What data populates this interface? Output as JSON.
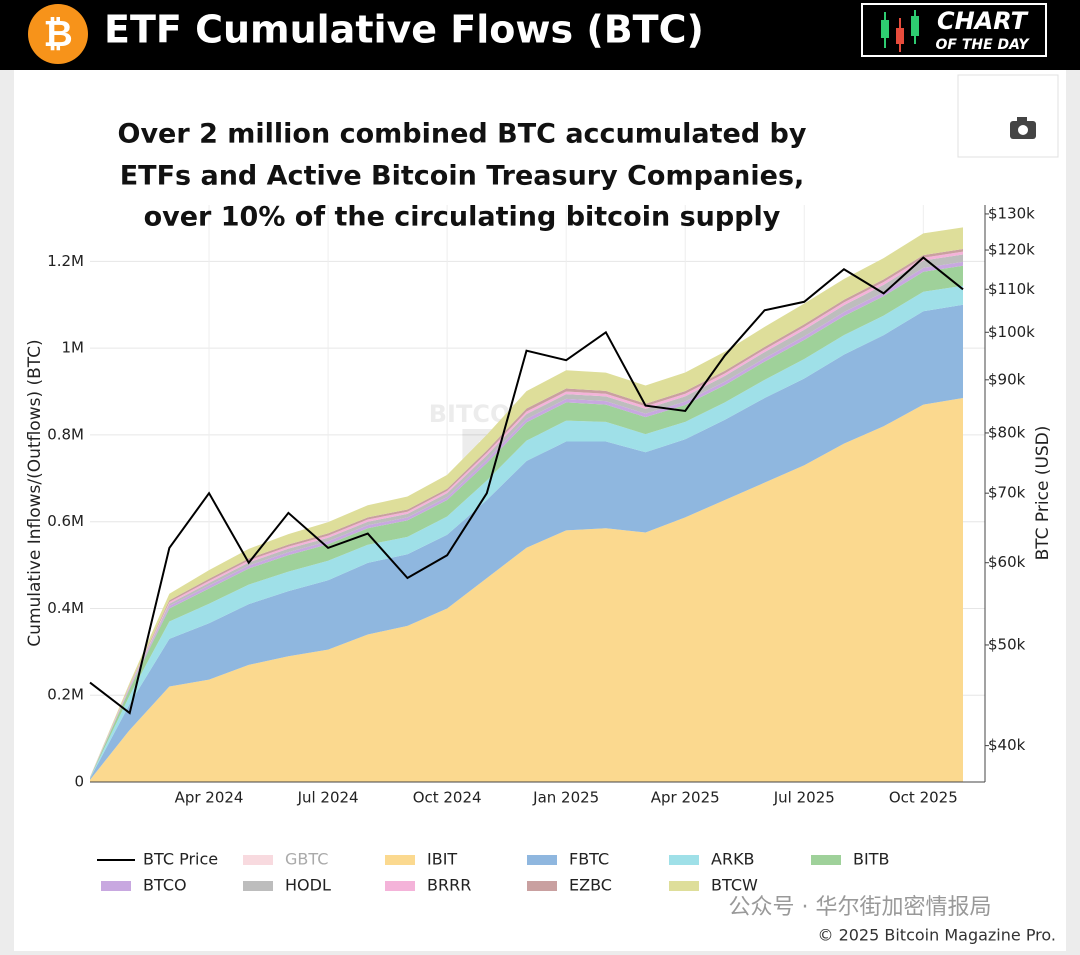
{
  "header": {
    "logo": "₿",
    "title": "ETF Cumulative Flows (BTC)",
    "badge": [
      "CHART",
      "OF THE DAY"
    ]
  },
  "chart_data": {
    "type": "area",
    "annotation": [
      "Over 2 million combined BTC accumulated by",
      "ETFs and Active Bitcoin Treasury Companies,",
      "over 10% of the circulating bitcoin supply"
    ],
    "watermark": [
      "BITCOIN MAGAZINE",
      "PRO"
    ],
    "ylabel": "Cumulative Inflows/(Outflows) (BTC)",
    "y2label": "BTC Price (USD)",
    "categories": [
      null,
      null,
      null,
      "Apr 2024",
      null,
      null,
      "Jul 2024",
      null,
      null,
      "Oct 2024",
      null,
      null,
      "Jan 2025",
      null,
      null,
      "Apr 2025",
      null,
      null,
      "Jul 2025",
      null,
      null,
      "Oct 2025",
      null
    ],
    "ylim": [
      0,
      1330000
    ],
    "yticks": [
      {
        "value": 0,
        "label": "0"
      },
      {
        "value": 200000,
        "label": "0.2M"
      },
      {
        "value": 400000,
        "label": "0.4M"
      },
      {
        "value": 600000,
        "label": "0.6M"
      },
      {
        "value": 800000,
        "label": "0.8M"
      },
      {
        "value": 1000000,
        "label": "1M"
      },
      {
        "value": 1200000,
        "label": "1.2M"
      }
    ],
    "y2lim": [
      36900,
      132600
    ],
    "y2log": true,
    "y2ticks": [
      {
        "value": 40000,
        "label": "$40k"
      },
      {
        "value": 50000,
        "label": "$50k"
      },
      {
        "value": 60000,
        "label": "$60k"
      },
      {
        "value": 70000,
        "label": "$70k"
      },
      {
        "value": 80000,
        "label": "$80k"
      },
      {
        "value": 90000,
        "label": "$90k"
      },
      {
        "value": 100000,
        "label": "$100k"
      },
      {
        "value": 110000,
        "label": "$110k"
      },
      {
        "value": 120000,
        "label": "$120k"
      },
      {
        "value": 130000,
        "label": "$130k"
      }
    ],
    "grid": true,
    "series": [
      {
        "name": "BTC Price",
        "color": "#000000",
        "type": "line",
        "axis": "y2",
        "values": [
          46000,
          43000,
          62000,
          70000,
          60000,
          67000,
          62000,
          64000,
          58000,
          61000,
          70000,
          96000,
          94000,
          100000,
          85000,
          84000,
          95000,
          105000,
          107000,
          115000,
          109000,
          118000,
          110000
        ]
      },
      {
        "name": "GBTC",
        "color": "#f4c2c9",
        "hidden": true
      },
      {
        "name": "IBIT",
        "color": "#fbd98f",
        "values": [
          5000,
          120000,
          220000,
          236000,
          270000,
          290000,
          305000,
          340000,
          360000,
          400000,
          470000,
          540000,
          580000,
          585000,
          575000,
          610000,
          650000,
          690000,
          730000,
          780000,
          820000,
          870000,
          885000
        ]
      },
      {
        "name": "FBTC",
        "color": "#8fb7df",
        "values": [
          3000,
          60000,
          110000,
          130000,
          140000,
          150000,
          160000,
          165000,
          165000,
          170000,
          180000,
          200000,
          205000,
          200000,
          185000,
          180000,
          185000,
          195000,
          200000,
          205000,
          210000,
          215000,
          215000
        ]
      },
      {
        "name": "ARKB",
        "color": "#9fe0e8",
        "values": [
          1000,
          20000,
          40000,
          45000,
          45000,
          45000,
          45000,
          42000,
          40000,
          42000,
          45000,
          47000,
          48000,
          45000,
          42000,
          40000,
          40000,
          42000,
          45000,
          45000,
          45000,
          45000,
          44000
        ]
      },
      {
        "name": "BITB",
        "color": "#9fd19a",
        "values": [
          1000,
          15000,
          30000,
          35000,
          37000,
          38000,
          38000,
          38000,
          38000,
          38000,
          40000,
          42000,
          42000,
          40000,
          39000,
          39000,
          40000,
          42000,
          44000,
          44000,
          45000,
          46000,
          46000
        ]
      },
      {
        "name": "BTCO",
        "color": "#c8a8e0",
        "values": [
          500,
          3000,
          6000,
          7000,
          7000,
          7000,
          7000,
          7000,
          7000,
          7000,
          8000,
          8000,
          8000,
          8000,
          8000,
          8000,
          8000,
          8000,
          8500,
          9000,
          9000,
          9000,
          9000
        ]
      },
      {
        "name": "HODL",
        "color": "#bdbdbd",
        "values": [
          300,
          2000,
          5000,
          6000,
          7000,
          8000,
          8000,
          8000,
          8000,
          9000,
          10000,
          11000,
          11000,
          11000,
          11000,
          12000,
          13000,
          14000,
          15000,
          16000,
          17000,
          17000,
          17000
        ]
      },
      {
        "name": "BRRR",
        "color": "#f4b3d9",
        "values": [
          300,
          2000,
          4000,
          4500,
          4500,
          4500,
          5000,
          5000,
          5000,
          5000,
          5500,
          6000,
          6000,
          6000,
          6000,
          6000,
          6000,
          6000,
          6500,
          6500,
          6500,
          6500,
          6500
        ]
      },
      {
        "name": "EZBC",
        "color": "#c9a0a0",
        "values": [
          300,
          2000,
          4000,
          5000,
          5000,
          5000,
          5000,
          5000,
          5000,
          5000,
          6000,
          7000,
          7000,
          6500,
          6000,
          6000,
          6000,
          6000,
          6000,
          6000,
          6000,
          6000,
          6000
        ]
      },
      {
        "name": "BTCW",
        "color": "#dede9a",
        "values": [
          300,
          5000,
          15000,
          20000,
          22000,
          24000,
          26000,
          28000,
          30000,
          32000,
          36000,
          40000,
          42000,
          42000,
          42000,
          43000,
          44000,
          46000,
          48000,
          48000,
          49000,
          50000,
          50000
        ]
      }
    ]
  },
  "footer": {
    "watermark": "公众号 · 华尔街加密情报局",
    "copyright": "© 2025 Bitcoin Magazine Pro."
  }
}
